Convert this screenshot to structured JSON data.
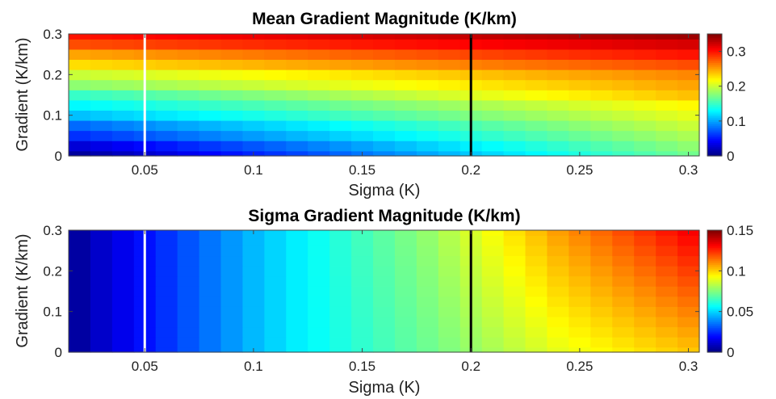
{
  "chart_data": [
    {
      "type": "heatmap",
      "title": "Mean Gradient Magnitude (K/km)",
      "xlabel": "Sigma (K)",
      "ylabel": "Gradient (K/km)",
      "xlim": [
        0.015,
        0.305
      ],
      "ylim": [
        0,
        0.3
      ],
      "xticks": [
        0.05,
        0.1,
        0.15,
        0.2,
        0.25,
        0.3
      ],
      "xtick_labels": [
        "0.05",
        "0.1",
        "0.15",
        "0.2",
        "0.25",
        "0.3"
      ],
      "yticks": [
        0,
        0.1,
        0.2,
        0.3
      ],
      "ytick_labels": [
        "0",
        "0.1",
        "0.2",
        "0.3"
      ],
      "colormap": "jet",
      "clim": [
        0,
        0.35
      ],
      "colorbar_ticks": [
        0,
        0.1,
        0.2,
        0.3
      ],
      "colorbar_labels": [
        "0",
        "0.1",
        "0.2",
        "0.3"
      ],
      "x": [
        0.02,
        0.03,
        0.04,
        0.05,
        0.06,
        0.07,
        0.08,
        0.09,
        0.1,
        0.11,
        0.12,
        0.13,
        0.14,
        0.15,
        0.16,
        0.17,
        0.18,
        0.19,
        0.2,
        0.21,
        0.22,
        0.23,
        0.24,
        0.25,
        0.26,
        0.27,
        0.28,
        0.29,
        0.3
      ],
      "y": [
        0,
        0.025,
        0.05,
        0.075,
        0.1,
        0.125,
        0.15,
        0.175,
        0.2,
        0.225,
        0.25,
        0.275,
        0.3
      ],
      "z_at_x_min": [
        0.01,
        0.03,
        0.06,
        0.08,
        0.11,
        0.13,
        0.15,
        0.18,
        0.2,
        0.23,
        0.25,
        0.28,
        0.3
      ],
      "z_at_x_max": [
        0.17,
        0.18,
        0.19,
        0.2,
        0.21,
        0.22,
        0.24,
        0.25,
        0.26,
        0.28,
        0.3,
        0.32,
        0.34
      ],
      "vlines": [
        {
          "x": 0.05,
          "color": "#ffffff"
        },
        {
          "x": 0.2,
          "color": "#000000"
        }
      ]
    },
    {
      "type": "heatmap",
      "title": "Sigma Gradient Magnitude (K/km)",
      "xlabel": "Sigma (K)",
      "ylabel": "Gradient (K/km)",
      "xlim": [
        0.015,
        0.305
      ],
      "ylim": [
        0,
        0.3
      ],
      "xticks": [
        0.05,
        0.1,
        0.15,
        0.2,
        0.25,
        0.3
      ],
      "xtick_labels": [
        "0.05",
        "0.1",
        "0.15",
        "0.2",
        "0.25",
        "0.3"
      ],
      "yticks": [
        0,
        0.1,
        0.2,
        0.3
      ],
      "ytick_labels": [
        "0",
        "0.1",
        "0.2",
        "0.3"
      ],
      "colormap": "jet",
      "clim": [
        0,
        0.15
      ],
      "colorbar_ticks": [
        0,
        0.05,
        0.1,
        0.15
      ],
      "colorbar_labels": [
        "0",
        "0.05",
        "0.1",
        "0.15"
      ],
      "x": [
        0.02,
        0.03,
        0.04,
        0.05,
        0.06,
        0.07,
        0.08,
        0.09,
        0.1,
        0.11,
        0.12,
        0.13,
        0.14,
        0.15,
        0.16,
        0.17,
        0.18,
        0.19,
        0.2,
        0.21,
        0.22,
        0.23,
        0.24,
        0.25,
        0.26,
        0.27,
        0.28,
        0.29,
        0.3
      ],
      "y": [
        0,
        0.025,
        0.05,
        0.075,
        0.1,
        0.125,
        0.15,
        0.175,
        0.2,
        0.225,
        0.25,
        0.275,
        0.3
      ],
      "z_at_y_min": [
        0.005,
        0.011,
        0.016,
        0.021,
        0.026,
        0.031,
        0.036,
        0.041,
        0.046,
        0.05,
        0.054,
        0.057,
        0.06,
        0.063,
        0.066,
        0.069,
        0.072,
        0.075,
        0.078,
        0.081,
        0.084,
        0.087,
        0.09,
        0.092,
        0.094,
        0.096,
        0.098,
        0.1,
        0.102
      ],
      "z_at_y_max": [
        0.005,
        0.011,
        0.016,
        0.021,
        0.026,
        0.031,
        0.036,
        0.041,
        0.046,
        0.05,
        0.054,
        0.058,
        0.062,
        0.066,
        0.07,
        0.074,
        0.078,
        0.083,
        0.088,
        0.093,
        0.098,
        0.103,
        0.108,
        0.112,
        0.116,
        0.12,
        0.124,
        0.128,
        0.132
      ],
      "vlines": [
        {
          "x": 0.05,
          "color": "#ffffff"
        },
        {
          "x": 0.2,
          "color": "#000000"
        }
      ]
    }
  ]
}
